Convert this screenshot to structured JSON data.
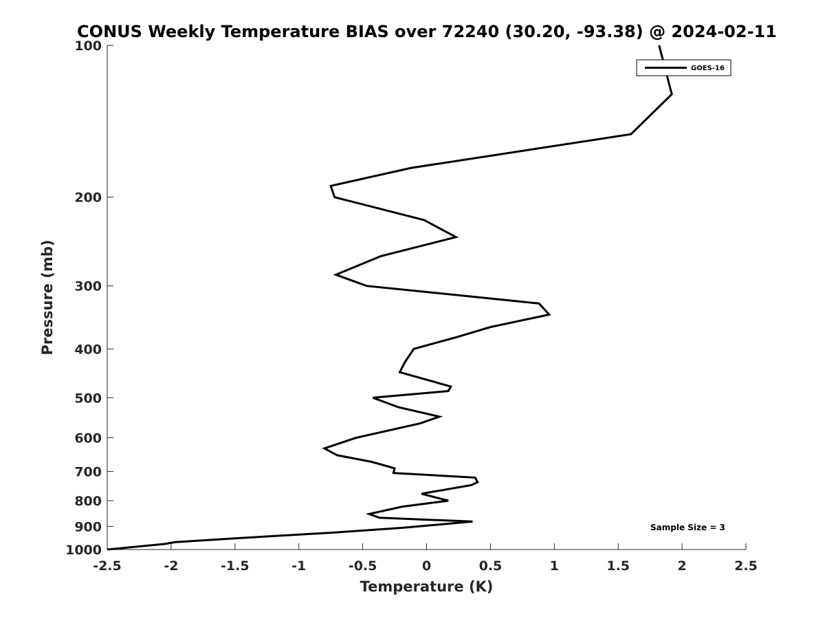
{
  "chart_data": {
    "type": "line",
    "title": "CONUS Weekly Temperature BIAS over 72240 (30.20, -93.38) @ 2024-02-11",
    "xlabel": "Temperature (K)",
    "ylabel": "Pressure (mb)",
    "xlim": [
      -2.5,
      2.5
    ],
    "ylim": [
      100,
      1000
    ],
    "yscale": "log",
    "yaxis_reversed": true,
    "grid": false,
    "legend_position": "top-right",
    "x_ticks": [
      -2.5,
      -2,
      -1.5,
      -1,
      -0.5,
      0,
      0.5,
      1,
      1.5,
      2,
      2.5
    ],
    "x_tick_labels": [
      "-2.5",
      "-2",
      "-1.5",
      "-1",
      "-0.5",
      "0",
      "0.5",
      "1",
      "1.5",
      "2",
      "2.5"
    ],
    "y_ticks": [
      100,
      200,
      300,
      400,
      500,
      600,
      700,
      800,
      900,
      1000
    ],
    "y_tick_labels": [
      "100",
      "200",
      "300",
      "400",
      "500",
      "600",
      "700",
      "800",
      "900",
      "1000"
    ],
    "annotation": "Sample Size = 3",
    "series": [
      {
        "name": "GOES-16",
        "color": "#000000",
        "points": [
          [
            1.82,
            100
          ],
          [
            1.92,
            125
          ],
          [
            1.6,
            150
          ],
          [
            -0.12,
            175
          ],
          [
            -0.75,
            190
          ],
          [
            -0.72,
            200
          ],
          [
            -0.02,
            222
          ],
          [
            0.23,
            240
          ],
          [
            -0.36,
            262
          ],
          [
            -0.71,
            285
          ],
          [
            -0.47,
            300
          ],
          [
            0.88,
            325
          ],
          [
            0.96,
            342
          ],
          [
            0.5,
            362
          ],
          [
            0.22,
            380
          ],
          [
            -0.1,
            400
          ],
          [
            -0.17,
            425
          ],
          [
            -0.21,
            445
          ],
          [
            0.19,
            475
          ],
          [
            0.17,
            485
          ],
          [
            -0.42,
            500
          ],
          [
            -0.22,
            522
          ],
          [
            0.1,
            545
          ],
          [
            -0.05,
            562
          ],
          [
            -0.55,
            600
          ],
          [
            -0.8,
            630
          ],
          [
            -0.7,
            650
          ],
          [
            -0.43,
            670
          ],
          [
            -0.25,
            690
          ],
          [
            -0.26,
            705
          ],
          [
            0.38,
            720
          ],
          [
            0.4,
            735
          ],
          [
            0.35,
            745
          ],
          [
            -0.04,
            775
          ],
          [
            0.17,
            800
          ],
          [
            -0.19,
            822
          ],
          [
            -0.45,
            850
          ],
          [
            -0.37,
            865
          ],
          [
            0.36,
            880
          ],
          [
            -0.18,
            905
          ],
          [
            -0.72,
            925
          ],
          [
            -1.5,
            950
          ],
          [
            -1.97,
            967
          ],
          [
            -2.05,
            975
          ],
          [
            -2.5,
            1000
          ]
        ]
      }
    ]
  }
}
